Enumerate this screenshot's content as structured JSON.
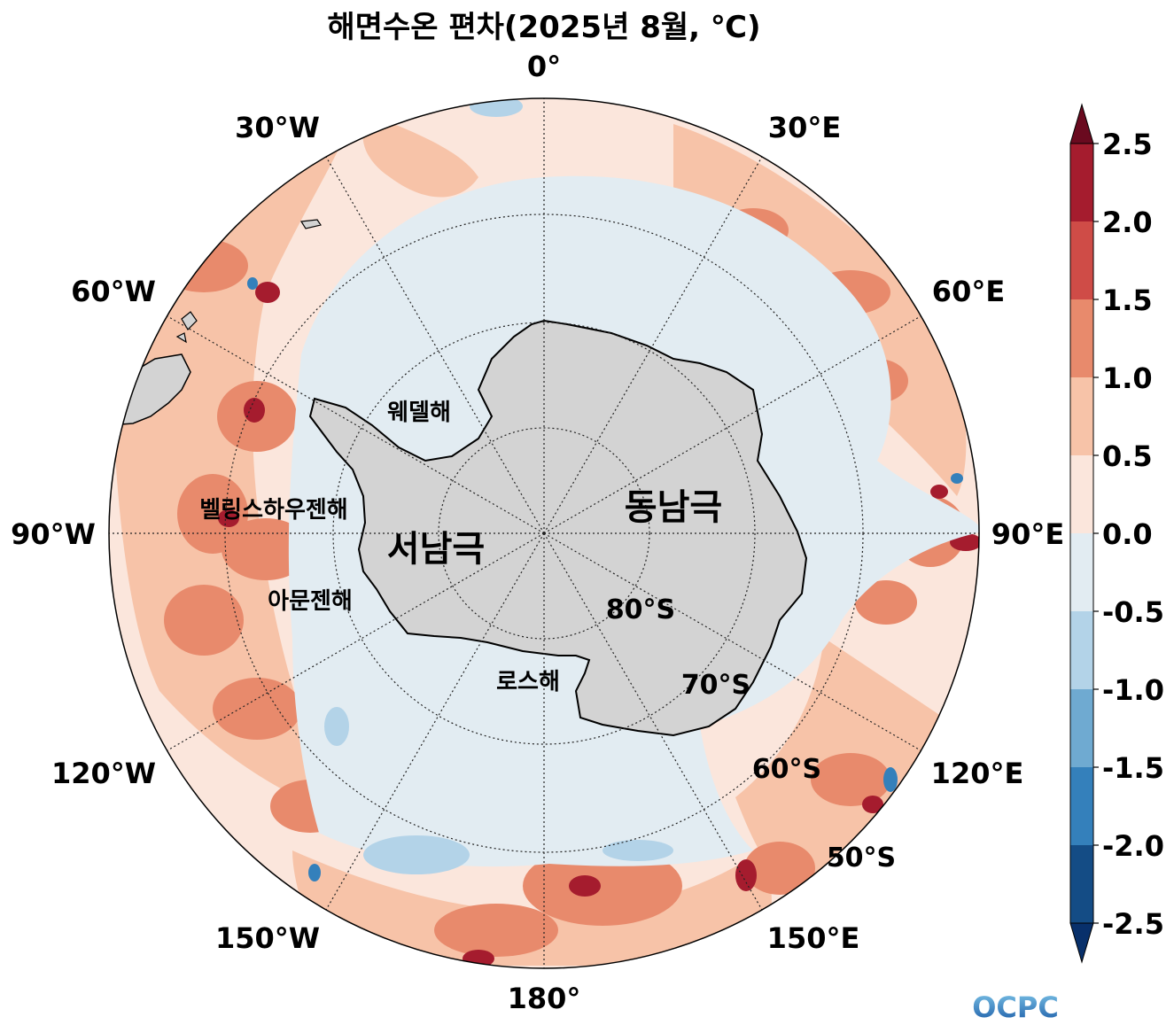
{
  "title": "해면수온 편차(2025년 8월, ℃)",
  "meridian_labels": [
    "0°",
    "30°E",
    "60°E",
    "90°E",
    "120°E",
    "150°E",
    "180°",
    "150°W",
    "120°W",
    "90°W",
    "60°W",
    "30°W"
  ],
  "parallel_labels": [
    "80°S",
    "70°S",
    "60°S",
    "50°S"
  ],
  "regions": {
    "east_antarctica": "동남극",
    "west_antarctica": "서남극",
    "weddell_sea": "웨델해",
    "bellingshausen_sea": "벨링스하우젠해",
    "amundsen_sea": "아문젠해",
    "ross_sea": "로스해"
  },
  "colorbar": {
    "tick_labels": [
      "2.5",
      "2.0",
      "1.5",
      "1.0",
      "0.5",
      "0.0",
      "-0.5",
      "-1.0",
      "-1.5",
      "-2.0",
      "-2.5"
    ],
    "colors": [
      "#6a0a1f",
      "#a51c2e",
      "#cf4c47",
      "#e88a6c",
      "#f7c3a8",
      "#fbe6dc",
      "#e2ecf2",
      "#b3d3e8",
      "#6faad1",
      "#3480bb",
      "#144c85",
      "#08306b"
    ]
  },
  "logo": "OCPC"
}
